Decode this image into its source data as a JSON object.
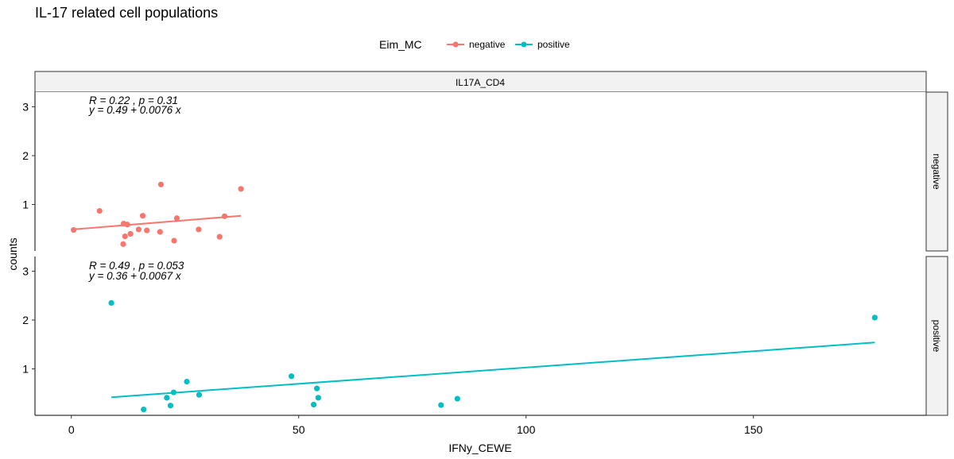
{
  "chart_data": {
    "type": "scatter",
    "title": "IL-17 related cell populations",
    "xlabel": "IFNy_CEWE",
    "ylabel": "counts",
    "legend_title": "Eim_MC",
    "legend_position": "top",
    "column_strip": "IL17A_CD4",
    "xlim": [
      -8,
      188
    ],
    "x_ticks": [
      0,
      50,
      100,
      150
    ],
    "y_ticks": [
      1,
      2,
      3
    ],
    "grid": false,
    "series": [
      {
        "name": "negative",
        "color": "#F8766D",
        "ylim": [
          0.05,
          3.3
        ],
        "stats": [
          "R = 0.22 , p = 0.31",
          "y = 0.49 + 0.0076 x"
        ],
        "fit": {
          "x": [
            0.3,
            37.3
          ],
          "y": [
            0.49,
            0.77
          ]
        },
        "points": [
          {
            "x": 0.5,
            "y": 0.48
          },
          {
            "x": 6.2,
            "y": 0.87
          },
          {
            "x": 11.4,
            "y": 0.19
          },
          {
            "x": 11.5,
            "y": 0.61
          },
          {
            "x": 11.8,
            "y": 0.35
          },
          {
            "x": 12.3,
            "y": 0.59
          },
          {
            "x": 13.0,
            "y": 0.4
          },
          {
            "x": 14.8,
            "y": 0.49
          },
          {
            "x": 15.7,
            "y": 0.77
          },
          {
            "x": 16.6,
            "y": 0.47
          },
          {
            "x": 19.5,
            "y": 0.44
          },
          {
            "x": 19.7,
            "y": 1.41
          },
          {
            "x": 22.6,
            "y": 0.26
          },
          {
            "x": 23.2,
            "y": 0.72
          },
          {
            "x": 28.0,
            "y": 0.49
          },
          {
            "x": 32.6,
            "y": 0.34
          },
          {
            "x": 33.7,
            "y": 0.76
          },
          {
            "x": 37.3,
            "y": 1.32
          }
        ]
      },
      {
        "name": "positive",
        "color": "#00BFC4",
        "ylim": [
          0.05,
          3.3
        ],
        "stats": [
          "R = 0.49 , p = 0.053",
          "y = 0.36 + 0.0067 x"
        ],
        "fit": {
          "x": [
            8.8,
            176.7
          ],
          "y": [
            0.42,
            1.54
          ]
        },
        "points": [
          {
            "x": 8.8,
            "y": 2.35
          },
          {
            "x": 15.9,
            "y": 0.17
          },
          {
            "x": 21.0,
            "y": 0.41
          },
          {
            "x": 21.8,
            "y": 0.25
          },
          {
            "x": 22.5,
            "y": 0.52
          },
          {
            "x": 25.4,
            "y": 0.74
          },
          {
            "x": 28.1,
            "y": 0.47
          },
          {
            "x": 48.4,
            "y": 0.85
          },
          {
            "x": 53.3,
            "y": 0.27
          },
          {
            "x": 54.0,
            "y": 0.6
          },
          {
            "x": 54.3,
            "y": 0.41
          },
          {
            "x": 81.3,
            "y": 0.26
          },
          {
            "x": 84.9,
            "y": 0.39
          },
          {
            "x": 176.7,
            "y": 2.05
          }
        ]
      }
    ]
  }
}
